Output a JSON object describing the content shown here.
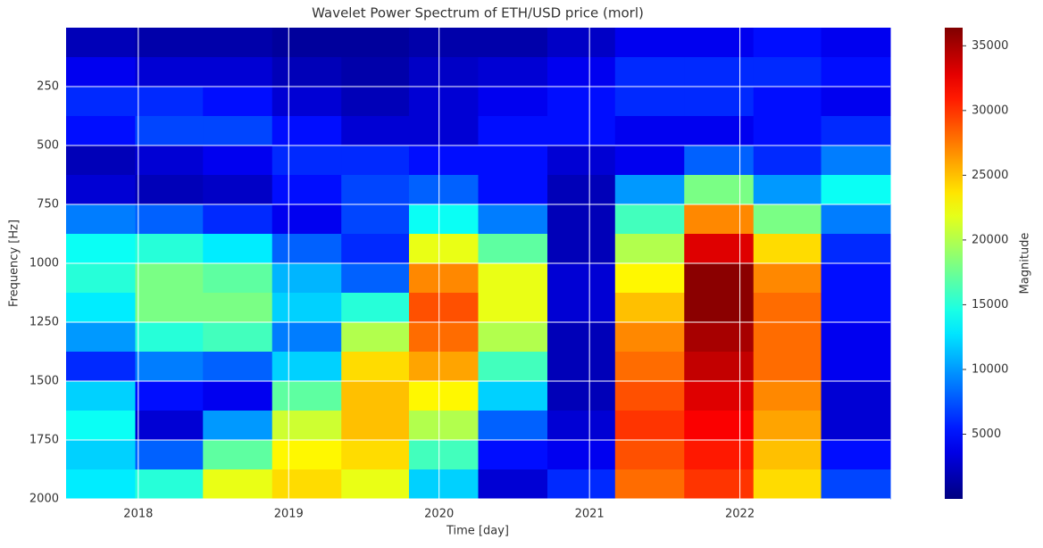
{
  "chart_data": {
    "type": "heatmap",
    "title": "Wavelet Power Spectrum of ETH/USD price (morl)",
    "x_label": "Time [day]",
    "y_label": "Frequency [Hz]",
    "colorbar_label": "Magnitude",
    "colormap": "jet",
    "grid": true,
    "xlim": [
      2017.52,
      2023.0
    ],
    "xticks": [
      2018,
      2019,
      2020,
      2021,
      2022
    ],
    "ylim": [
      2000,
      0
    ],
    "yticks": [
      250,
      500,
      750,
      1000,
      1250,
      1500,
      1750,
      2000
    ],
    "clim": [
      0,
      36400
    ],
    "cticks": [
      5000,
      10000,
      15000,
      20000,
      25000,
      30000,
      35000
    ],
    "x_edges": [
      2017.52,
      2017.98,
      2018.43,
      2018.89,
      2019.35,
      2019.8,
      2020.26,
      2020.72,
      2021.17,
      2021.63,
      2022.09,
      2022.54,
      2023.0
    ],
    "y_edges": [
      0,
      125,
      250,
      375,
      500,
      625,
      750,
      875,
      1000,
      1125,
      1250,
      1375,
      1500,
      1625,
      1750,
      1875,
      2000
    ],
    "z": [
      [
        2000,
        1500,
        1500,
        1000,
        1000,
        1500,
        1500,
        2500,
        4000,
        4000,
        5000,
        4000
      ],
      [
        4000,
        3000,
        3000,
        2000,
        1500,
        2500,
        3000,
        4000,
        6000,
        6000,
        6000,
        5000
      ],
      [
        6000,
        6000,
        5000,
        3000,
        2000,
        3000,
        4000,
        5000,
        6000,
        6000,
        5000,
        4000
      ],
      [
        5000,
        7000,
        7000,
        5000,
        3000,
        3000,
        5000,
        5000,
        4000,
        4000,
        5000,
        6000
      ],
      [
        2000,
        3000,
        4000,
        6000,
        6000,
        5000,
        5000,
        3000,
        4000,
        8000,
        6000,
        9000
      ],
      [
        3000,
        2000,
        2500,
        5000,
        7000,
        8000,
        5000,
        2000,
        10000,
        18000,
        10000,
        14000
      ],
      [
        9000,
        8000,
        6000,
        4000,
        7000,
        14000,
        9000,
        2000,
        16000,
        27000,
        18000,
        9000
      ],
      [
        14000,
        15000,
        13000,
        8000,
        6000,
        22000,
        17000,
        2000,
        20000,
        33000,
        24000,
        6000
      ],
      [
        15000,
        18000,
        17000,
        11000,
        8000,
        27000,
        22000,
        3000,
        23000,
        36000,
        27000,
        5000
      ],
      [
        13000,
        18000,
        18000,
        12000,
        15000,
        29000,
        22000,
        3000,
        25000,
        36000,
        28000,
        5000
      ],
      [
        10000,
        15000,
        16000,
        9000,
        20000,
        28000,
        20000,
        2000,
        27000,
        35000,
        28000,
        4000
      ],
      [
        6000,
        9000,
        8000,
        12000,
        24000,
        26000,
        16000,
        2000,
        28000,
        34000,
        28000,
        4000
      ],
      [
        12000,
        5000,
        4000,
        17000,
        25000,
        23000,
        12000,
        2000,
        29000,
        33000,
        27000,
        3000
      ],
      [
        14000,
        3000,
        10000,
        21000,
        25000,
        20000,
        8000,
        3000,
        30000,
        32000,
        26000,
        3000
      ],
      [
        12000,
        8000,
        17000,
        23000,
        24000,
        16000,
        5000,
        4000,
        29000,
        31000,
        25000,
        5000
      ],
      [
        13000,
        15000,
        22000,
        24000,
        22000,
        12000,
        3000,
        6000,
        28000,
        30000,
        24000,
        7000
      ]
    ]
  }
}
